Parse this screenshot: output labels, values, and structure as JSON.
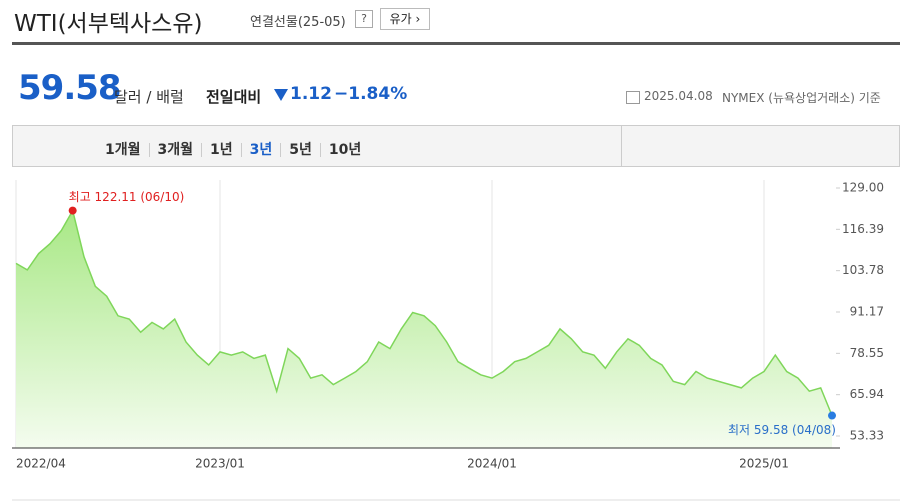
{
  "header": {
    "title": "WTI(서부텍사스유)",
    "contract": "연결선물(25-05)",
    "help": "?",
    "category": "유가"
  },
  "quote": {
    "price": "59.58",
    "unit": "달러 / 배럴",
    "change_label": "전일대비",
    "change": "1.12",
    "change_pct": "−1.84%",
    "date": "2025.04.08",
    "source": "NYMEX (뉴욕상업거래소) 기준"
  },
  "tabs": [
    "1개월",
    "3개월",
    "1년",
    "3년",
    "5년",
    "10년"
  ],
  "active_tab": 3,
  "chart_data": {
    "type": "area",
    "color": "#7fd65a",
    "categories": [
      "2022/04",
      null,
      null,
      null,
      null,
      null,
      null,
      null,
      null,
      null,
      null,
      null,
      null,
      null,
      null,
      null,
      null,
      null,
      "2023/01",
      null,
      null,
      null,
      null,
      null,
      null,
      null,
      null,
      null,
      null,
      null,
      null,
      null,
      null,
      null,
      null,
      null,
      null,
      null,
      null,
      null,
      null,
      null,
      "2024/01",
      null,
      null,
      null,
      null,
      null,
      null,
      null,
      null,
      null,
      null,
      null,
      null,
      null,
      null,
      null,
      null,
      null,
      null,
      null,
      null,
      null,
      null,
      null,
      "2025/01",
      null,
      null,
      null,
      null,
      null,
      null
    ],
    "values": [
      106,
      104,
      109,
      112,
      116,
      122.11,
      108,
      99,
      96,
      90,
      89,
      85,
      88,
      86,
      89,
      82,
      78,
      75,
      79,
      78,
      79,
      77,
      78,
      67,
      80,
      77,
      71,
      72,
      69,
      71,
      73,
      76,
      82,
      80,
      86,
      91,
      90,
      87,
      82,
      76,
      74,
      72,
      71,
      73,
      76,
      77,
      79,
      81,
      86,
      83,
      79,
      78,
      74,
      79,
      83,
      81,
      77,
      75,
      70,
      69,
      73,
      71,
      70,
      69,
      68,
      71,
      73,
      78,
      73,
      71,
      67,
      68,
      59.58
    ],
    "ylim": [
      49.67,
      131.44
    ],
    "yticks": [
      {
        "value": 129,
        "label": "129.00"
      },
      116.39,
      103.78,
      91.17,
      78.55,
      65.94,
      53.33
    ],
    "annotations": [
      "최고 122.11 (06/10)",
      "최저 59.58 (04/08)"
    ],
    "grid": true
  }
}
